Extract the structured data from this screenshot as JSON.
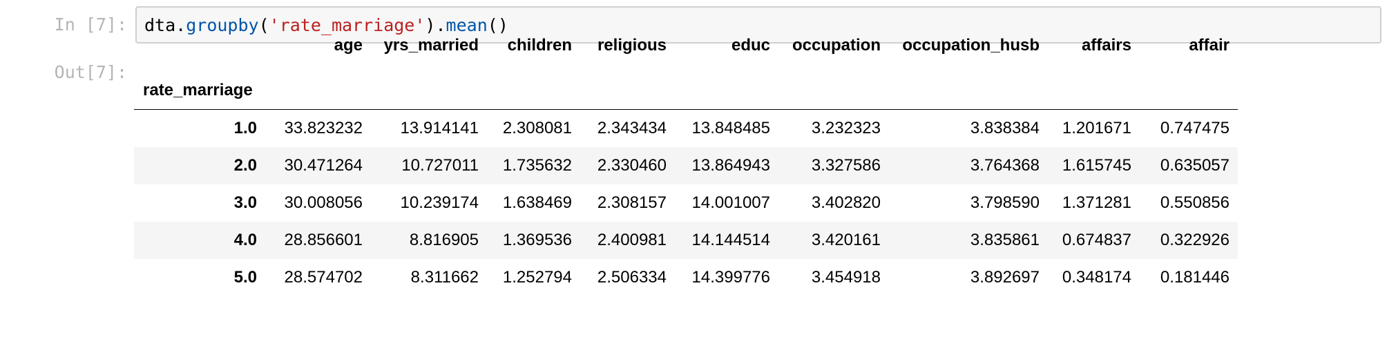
{
  "input_cell": {
    "prompt": "In [7]:",
    "code": {
      "obj": "dta",
      "dot1": ".",
      "method1": "groupby",
      "open1": "(",
      "arg": "'rate_marriage'",
      "close1": ")",
      "dot2": ".",
      "method2": "mean",
      "parens2": "()"
    }
  },
  "output_cell": {
    "prompt": "Out[7]:",
    "dataframe": {
      "index_name": "rate_marriage",
      "columns": [
        "age",
        "yrs_married",
        "children",
        "religious",
        "educ",
        "occupation",
        "occupation_husb",
        "affairs",
        "affair"
      ],
      "rows": [
        {
          "index": "1.0",
          "values": [
            "33.823232",
            "13.914141",
            "2.308081",
            "2.343434",
            "13.848485",
            "3.232323",
            "3.838384",
            "1.201671",
            "0.747475"
          ]
        },
        {
          "index": "2.0",
          "values": [
            "30.471264",
            "10.727011",
            "1.735632",
            "2.330460",
            "13.864943",
            "3.327586",
            "3.764368",
            "1.615745",
            "0.635057"
          ]
        },
        {
          "index": "3.0",
          "values": [
            "30.008056",
            "10.239174",
            "1.638469",
            "2.308157",
            "14.001007",
            "3.402820",
            "3.798590",
            "1.371281",
            "0.550856"
          ]
        },
        {
          "index": "4.0",
          "values": [
            "28.856601",
            "8.816905",
            "1.369536",
            "2.400981",
            "14.144514",
            "3.420161",
            "3.835861",
            "0.674837",
            "0.322926"
          ]
        },
        {
          "index": "5.0",
          "values": [
            "28.574702",
            "8.311662",
            "1.252794",
            "2.506334",
            "14.399776",
            "3.454918",
            "3.892697",
            "0.348174",
            "0.181446"
          ]
        }
      ]
    }
  },
  "colors": {
    "prompt": "#b5b5b5",
    "input_background": "#f7f7f7",
    "input_border": "#cfcfcf",
    "code_function": "#0055aa",
    "code_string": "#ba2121",
    "row_stripe": "#f5f5f5"
  }
}
